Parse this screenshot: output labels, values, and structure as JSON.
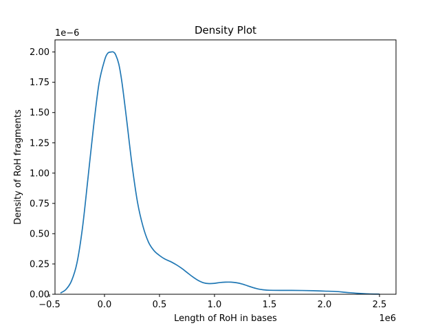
{
  "chart_data": {
    "type": "line",
    "title": "Density Plot",
    "xlabel": "Length of RoH in bases",
    "ylabel": "Density of RoH fragments",
    "x_offset_text": "1e6",
    "y_offset_text": "1e−6",
    "xlim": [
      -0.45,
      2.65
    ],
    "ylim": [
      0,
      2.1
    ],
    "x_ticks": [
      -0.5,
      0.0,
      0.5,
      1.0,
      1.5,
      2.0,
      2.5
    ],
    "x_tick_labels": [
      "−0.5",
      "0.0",
      "0.5",
      "1.0",
      "1.5",
      "2.0",
      "2.5"
    ],
    "y_ticks": [
      0.0,
      0.25,
      0.5,
      0.75,
      1.0,
      1.25,
      1.5,
      1.75,
      2.0
    ],
    "y_tick_labels": [
      "0.00",
      "0.25",
      "0.50",
      "0.75",
      "1.00",
      "1.25",
      "1.50",
      "1.75",
      "2.00"
    ],
    "grid": false,
    "color": "#1f77b4",
    "series": [
      {
        "x": [
          -0.4,
          -0.35,
          -0.3,
          -0.25,
          -0.2,
          -0.15,
          -0.1,
          -0.05,
          0.0,
          0.03,
          0.06,
          0.08,
          0.1,
          0.13,
          0.16,
          0.2,
          0.25,
          0.3,
          0.35,
          0.4,
          0.45,
          0.5,
          0.55,
          0.6,
          0.65,
          0.7,
          0.75,
          0.8,
          0.85,
          0.9,
          0.95,
          1.0,
          1.05,
          1.1,
          1.15,
          1.2,
          1.25,
          1.3,
          1.35,
          1.4,
          1.45,
          1.5,
          1.6,
          1.7,
          1.8,
          1.9,
          2.0,
          2.1,
          2.2,
          2.3,
          2.4,
          2.5
        ],
        "y": [
          0.01,
          0.04,
          0.11,
          0.26,
          0.55,
          0.96,
          1.38,
          1.74,
          1.93,
          1.99,
          2.0,
          2.0,
          1.98,
          1.9,
          1.74,
          1.45,
          1.07,
          0.76,
          0.56,
          0.43,
          0.36,
          0.32,
          0.29,
          0.27,
          0.245,
          0.215,
          0.18,
          0.145,
          0.115,
          0.095,
          0.088,
          0.09,
          0.097,
          0.1,
          0.1,
          0.095,
          0.085,
          0.07,
          0.055,
          0.043,
          0.036,
          0.033,
          0.032,
          0.032,
          0.031,
          0.029,
          0.026,
          0.023,
          0.015,
          0.008,
          0.003,
          0.001
        ]
      }
    ]
  }
}
